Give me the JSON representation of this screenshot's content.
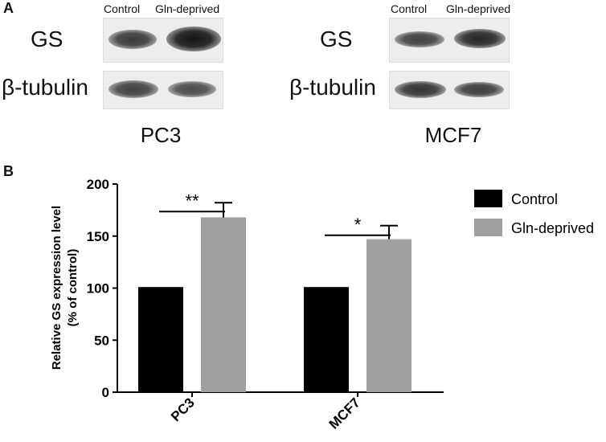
{
  "panel_a": {
    "letter": "A",
    "blots": [
      {
        "cell_line": "PC3",
        "lanes": [
          "Control",
          "Gln-deprived"
        ],
        "proteins": [
          "GS",
          "β-tubulin"
        ],
        "band_intensity": {
          "GS": [
            0.62,
            1.0
          ],
          "β-tubulin": [
            0.55,
            0.45
          ]
        }
      },
      {
        "cell_line": "MCF7",
        "lanes": [
          "Control",
          "Gln-deprived"
        ],
        "proteins": [
          "GS",
          "β-tubulin"
        ],
        "band_intensity": {
          "GS": [
            0.55,
            0.82
          ],
          "β-tubulin": [
            0.7,
            0.6
          ]
        }
      }
    ]
  },
  "panel_b": {
    "letter": "B"
  },
  "chart_data": {
    "type": "bar",
    "categories": [
      "PC3",
      "MCF7"
    ],
    "series": [
      {
        "name": "Control",
        "values": [
          101,
          101
        ],
        "errors": [
          0,
          0
        ],
        "color": "#000000"
      },
      {
        "name": "Gln-deprived",
        "values": [
          168,
          147
        ],
        "errors": [
          14,
          13
        ],
        "color": "#a0a0a0"
      }
    ],
    "significance": [
      "**",
      "*"
    ],
    "ylabel_line1": "Relative GS expression level",
    "ylabel_line2": "(% of control)",
    "ylim": [
      0,
      200
    ],
    "yticks": [
      "0",
      "50",
      "100",
      "150",
      "200"
    ],
    "legend_position": "right"
  }
}
